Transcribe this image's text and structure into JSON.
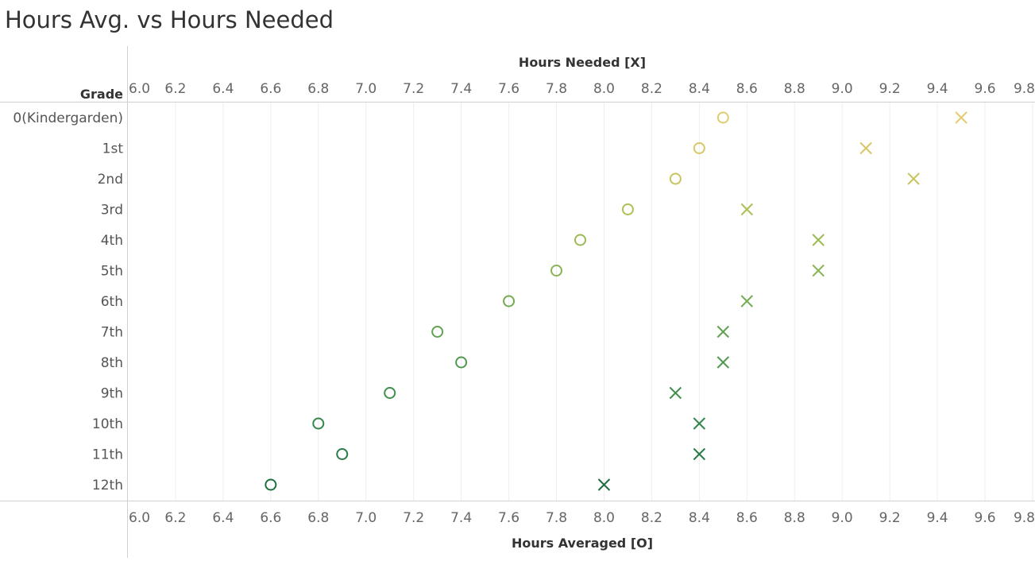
{
  "title": "Hours Avg. vs Hours Needed",
  "chart_data": {
    "type": "scatter",
    "title": "Hours Avg. vs Hours Needed",
    "row_header": "Grade",
    "x_top_label": "Hours Needed [X]",
    "x_bottom_label": "Hours Averaged [O]",
    "xlim": [
      6.0,
      9.8
    ],
    "x_ticks": [
      6.0,
      6.2,
      6.4,
      6.6,
      6.8,
      7.0,
      7.2,
      7.4,
      7.6,
      7.8,
      8.0,
      8.2,
      8.4,
      8.6,
      8.8,
      9.0,
      9.2,
      9.4,
      9.6,
      9.8
    ],
    "grid": "vertical",
    "categories": [
      "0(Kindergarden)",
      "1st",
      "2nd",
      "3rd",
      "4th",
      "5th",
      "6th",
      "7th",
      "8th",
      "9th",
      "10th",
      "11th",
      "12th"
    ],
    "series": [
      {
        "name": "Hours Averaged [O]",
        "marker": "circle",
        "values": [
          8.5,
          8.4,
          8.3,
          8.1,
          7.9,
          7.8,
          7.6,
          7.3,
          7.4,
          7.1,
          6.8,
          6.9,
          6.6
        ]
      },
      {
        "name": "Hours Needed [X]",
        "marker": "x",
        "values": [
          9.5,
          9.1,
          9.3,
          8.6,
          8.9,
          8.9,
          8.6,
          8.5,
          8.5,
          8.3,
          8.4,
          8.4,
          8.0
        ]
      }
    ],
    "row_colors": [
      "#e3cc6e",
      "#d8c767",
      "#c8c45e",
      "#b0bf55",
      "#9bbb52",
      "#8bb452",
      "#74ab52",
      "#62a252",
      "#529a52",
      "#3f8f4d",
      "#32864a",
      "#2a7c46",
      "#1f6e3e"
    ]
  }
}
